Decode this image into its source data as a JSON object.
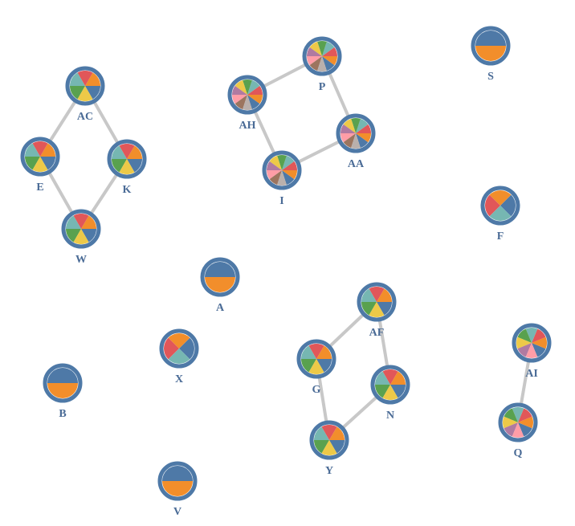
{
  "palette": {
    "blue": "#4e79a7",
    "orange": "#f28e2b",
    "red": "#e15759",
    "teal": "#76b7b2",
    "green": "#59a14f",
    "yellow": "#edc948",
    "purple": "#b07aa1",
    "pink": "#ff9da7",
    "brown": "#9c755f",
    "gray": "#bab0ac",
    "edge": "#c8c8c8",
    "label": "#4a6b96"
  },
  "nodes": [
    {
      "id": "AC",
      "label": "AC",
      "slices": [
        "blue",
        "orange",
        "red",
        "teal",
        "green",
        "yellow"
      ]
    },
    {
      "id": "E",
      "label": "E",
      "slices": [
        "blue",
        "orange",
        "red",
        "teal",
        "green",
        "yellow"
      ]
    },
    {
      "id": "K",
      "label": "K",
      "slices": [
        "blue",
        "orange",
        "red",
        "teal",
        "green",
        "yellow"
      ]
    },
    {
      "id": "W",
      "label": "W",
      "slices": [
        "blue",
        "orange",
        "red",
        "teal",
        "green",
        "yellow"
      ]
    },
    {
      "id": "AH",
      "label": "AH",
      "slices": [
        "blue",
        "orange",
        "red",
        "teal",
        "green",
        "yellow",
        "purple",
        "pink",
        "brown",
        "gray"
      ]
    },
    {
      "id": "P",
      "label": "P",
      "slices": [
        "blue",
        "orange",
        "red",
        "teal",
        "green",
        "yellow",
        "purple",
        "pink",
        "brown",
        "gray"
      ]
    },
    {
      "id": "AA",
      "label": "AA",
      "slices": [
        "blue",
        "orange",
        "red",
        "teal",
        "green",
        "yellow",
        "purple",
        "pink",
        "brown",
        "gray"
      ]
    },
    {
      "id": "I",
      "label": "I",
      "slices": [
        "blue",
        "orange",
        "red",
        "teal",
        "green",
        "yellow",
        "purple",
        "pink",
        "brown",
        "gray"
      ]
    },
    {
      "id": "S",
      "label": "S",
      "slices": [
        "blue",
        "orange"
      ]
    },
    {
      "id": "F",
      "label": "F",
      "slices": [
        "blue",
        "orange",
        "red",
        "teal"
      ]
    },
    {
      "id": "A",
      "label": "A",
      "slices": [
        "blue",
        "orange"
      ]
    },
    {
      "id": "X",
      "label": "X",
      "slices": [
        "blue",
        "orange",
        "red",
        "teal"
      ]
    },
    {
      "id": "B",
      "label": "B",
      "slices": [
        "blue",
        "orange"
      ]
    },
    {
      "id": "V",
      "label": "V",
      "slices": [
        "blue",
        "orange"
      ]
    },
    {
      "id": "AF",
      "label": "AF",
      "slices": [
        "blue",
        "orange",
        "red",
        "teal",
        "green",
        "yellow"
      ]
    },
    {
      "id": "G",
      "label": "G",
      "slices": [
        "blue",
        "orange",
        "red",
        "teal",
        "green",
        "yellow"
      ]
    },
    {
      "id": "N",
      "label": "N",
      "slices": [
        "blue",
        "orange",
        "red",
        "teal",
        "green",
        "yellow"
      ]
    },
    {
      "id": "Y",
      "label": "Y",
      "slices": [
        "blue",
        "orange",
        "red",
        "teal",
        "green",
        "yellow"
      ]
    },
    {
      "id": "AI",
      "label": "AI",
      "slices": [
        "blue",
        "orange",
        "red",
        "teal",
        "green",
        "yellow",
        "purple",
        "pink"
      ]
    },
    {
      "id": "Q",
      "label": "Q",
      "slices": [
        "blue",
        "orange",
        "red",
        "teal",
        "green",
        "yellow",
        "purple",
        "pink"
      ]
    }
  ],
  "edges": [
    {
      "source": "AC",
      "target": "E"
    },
    {
      "source": "AC",
      "target": "K"
    },
    {
      "source": "E",
      "target": "W"
    },
    {
      "source": "K",
      "target": "W"
    },
    {
      "source": "AH",
      "target": "P"
    },
    {
      "source": "P",
      "target": "AA"
    },
    {
      "source": "AA",
      "target": "I"
    },
    {
      "source": "I",
      "target": "AH"
    },
    {
      "source": "AF",
      "target": "G"
    },
    {
      "source": "AF",
      "target": "N"
    },
    {
      "source": "G",
      "target": "Y"
    },
    {
      "source": "N",
      "target": "Y"
    },
    {
      "source": "AI",
      "target": "Q"
    }
  ]
}
